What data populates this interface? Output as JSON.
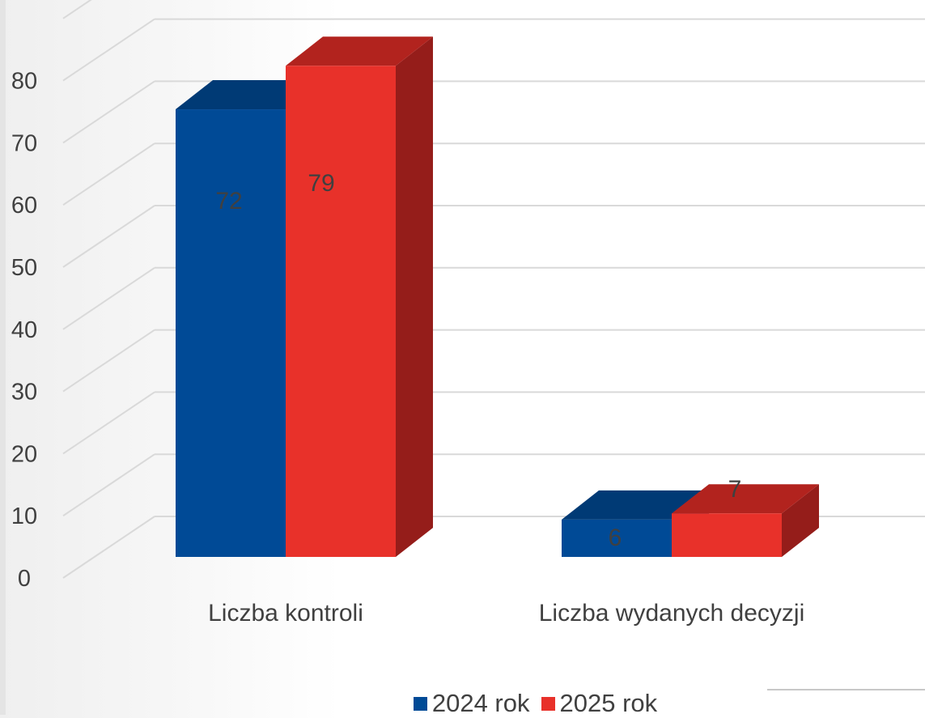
{
  "chart_data": {
    "type": "bar",
    "categories": [
      "Liczba kontroli",
      "Liczba wydanych decyzji"
    ],
    "series": [
      {
        "name": "2024 rok",
        "values": [
          72,
          6
        ],
        "color": "#004a96",
        "top_color": "#003a75"
      },
      {
        "name": "2025 rok",
        "values": [
          79,
          7
        ],
        "color": "#e8312a",
        "top_color": "#b2231e",
        "side_color": "#951d1a"
      }
    ],
    "ylim": [
      0,
      90
    ],
    "y_ticks": [
      0,
      10,
      20,
      30,
      40,
      50,
      60,
      70,
      80
    ],
    "grid": true,
    "three_d": true,
    "legend_position": "bottom",
    "data_label_color": "#404040",
    "axis_label_color": "#404040",
    "grid_color": "#d9d9d9"
  }
}
